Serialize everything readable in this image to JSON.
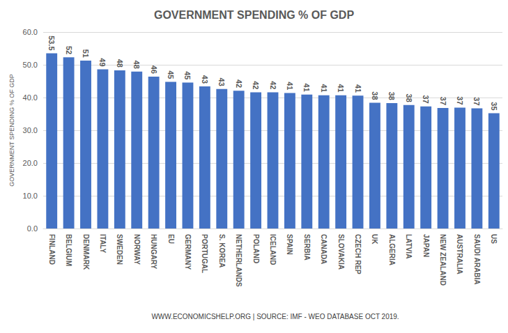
{
  "chart_data": {
    "type": "bar",
    "title": "GOVERNMENT SPENDING % OF GDP",
    "y_label": "GOVERNMENT SPENDING % OF GDP",
    "source": "WWW.ECONOMICSHELP.ORG | SOURCE: IMF - WEO DATABASE OCT 2019.",
    "categories": [
      "FINLAND",
      "BELGIUM",
      "DENMARK",
      "ITALY",
      "SWEDEN",
      "NORWAY",
      "HUNGARY",
      "EU",
      "GERMANY",
      "PORTUGAL",
      "S. KOREA",
      "NETHERLANDS",
      "POLAND",
      "ICELAND",
      "SPAIN",
      "SERBIA",
      "CANADA",
      "SLOVAKIA",
      "CZECH REP",
      "UK",
      "ALGERIA",
      "LATVIA",
      "JAPAN",
      "NEW ZEALAND",
      "AUSTRALIA",
      "SAUDI ARABIA",
      "US"
    ],
    "values": [
      53.5,
      52.3,
      51.3,
      48.6,
      48.3,
      47.9,
      46.4,
      44.8,
      44.6,
      43.4,
      42.6,
      42.1,
      41.6,
      41.6,
      41.4,
      40.9,
      40.7,
      40.7,
      40.6,
      38.4,
      38.3,
      37.7,
      37.3,
      36.8,
      36.9,
      36.7,
      35.2
    ],
    "value_labels": [
      "53.5",
      "52",
      "51",
      "49",
      "48",
      "48",
      "46",
      "45",
      "45",
      "43",
      "43",
      "42",
      "42",
      "42",
      "41",
      "41",
      "41",
      "41",
      "41",
      "38",
      "38",
      "38",
      "37",
      "37",
      "37",
      "37",
      "35"
    ],
    "color": "#4472c4",
    "data_labels": true,
    "ylim": [
      0,
      60
    ],
    "yticks": [
      {
        "value": 0,
        "label": "0.0"
      },
      {
        "value": 10,
        "label": "10.0"
      },
      {
        "value": 20,
        "label": "20.0"
      },
      {
        "value": 30,
        "label": "30.0"
      },
      {
        "value": 40,
        "label": "40.0"
      },
      {
        "value": 50,
        "label": "50.0"
      },
      {
        "value": 60,
        "label": "60.0"
      }
    ],
    "grid": true
  }
}
